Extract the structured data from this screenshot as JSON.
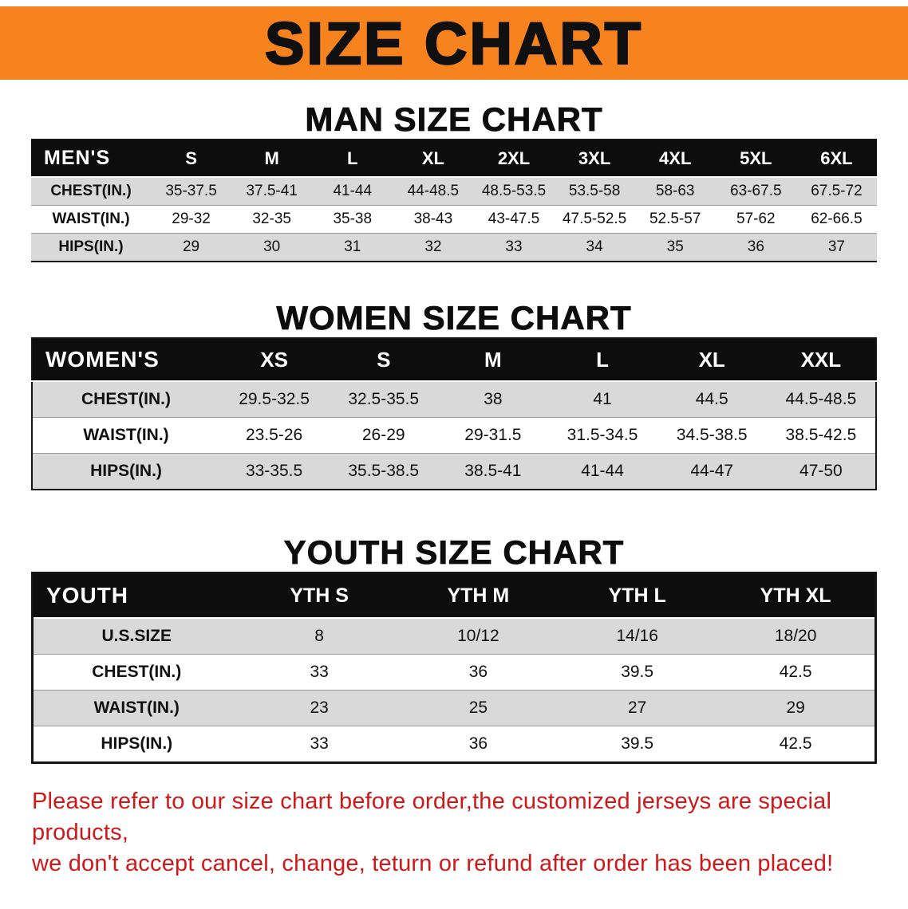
{
  "banner": {
    "title": "SIZE CHART",
    "bg_color": "#F6831D"
  },
  "men": {
    "heading": "MAN SIZE CHART",
    "table": {
      "header": [
        "MEN'S",
        "S",
        "M",
        "L",
        "XL",
        "2XL",
        "3XL",
        "4XL",
        "5XL",
        "6XL"
      ],
      "rows": [
        {
          "label": "CHEST(IN.)",
          "values": [
            "35-37.5",
            "37.5-41",
            "41-44",
            "44-48.5",
            "48.5-53.5",
            "53.5-58",
            "58-63",
            "63-67.5",
            "67.5-72"
          ]
        },
        {
          "label": "WAIST(IN.)",
          "values": [
            "29-32",
            "32-35",
            "35-38",
            "38-43",
            "43-47.5",
            "47.5-52.5",
            "52.5-57",
            "57-62",
            "62-66.5"
          ]
        },
        {
          "label": "HIPS(IN.)",
          "values": [
            "29",
            "30",
            "31",
            "32",
            "33",
            "34",
            "35",
            "36",
            "37"
          ]
        }
      ]
    }
  },
  "women": {
    "heading": "WOMEN SIZE CHART",
    "table": {
      "header": [
        "WOMEN'S",
        "XS",
        "S",
        "M",
        "L",
        "XL",
        "XXL"
      ],
      "rows": [
        {
          "label": "CHEST(IN.)",
          "values": [
            "29.5-32.5",
            "32.5-35.5",
            "38",
            "41",
            "44.5",
            "44.5-48.5"
          ]
        },
        {
          "label": "WAIST(IN.)",
          "values": [
            "23.5-26",
            "26-29",
            "29-31.5",
            "31.5-34.5",
            "34.5-38.5",
            "38.5-42.5"
          ]
        },
        {
          "label": "HIPS(IN.)",
          "values": [
            "33-35.5",
            "35.5-38.5",
            "38.5-41",
            "41-44",
            "44-47",
            "47-50"
          ]
        }
      ]
    }
  },
  "youth": {
    "heading": "YOUTH SIZE CHART",
    "table": {
      "header": [
        "YOUTH",
        "YTH S",
        "YTH M",
        "YTH L",
        "YTH XL"
      ],
      "rows": [
        {
          "label": "U.S.SIZE",
          "values": [
            "8",
            "10/12",
            "14/16",
            "18/20"
          ]
        },
        {
          "label": "CHEST(IN.)",
          "values": [
            "33",
            "36",
            "39.5",
            "42.5"
          ]
        },
        {
          "label": "WAIST(IN.)",
          "values": [
            "23",
            "25",
            "27",
            "29"
          ]
        },
        {
          "label": "HIPS(IN.)",
          "values": [
            "33",
            "36",
            "39.5",
            "42.5"
          ]
        }
      ]
    }
  },
  "disclaimer": {
    "color": "#D01818",
    "line1": "Please refer to our size chart before order,the customized jerseys are special products,",
    "line2": "we don't accept cancel, change, teturn or refund after order has been placed!"
  }
}
